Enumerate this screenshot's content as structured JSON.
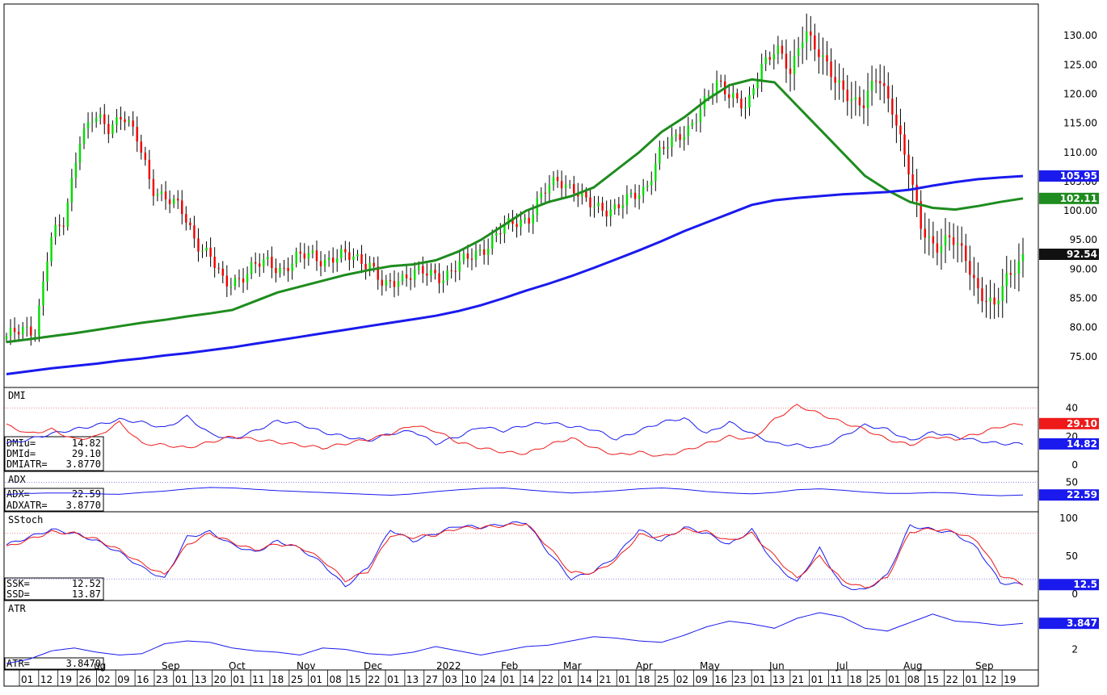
{
  "chart_data": [
    {
      "panel": "price",
      "type": "ohlc-bar",
      "ylim": [
        70,
        135
      ],
      "yticks": [
        "75.00",
        "80.00",
        "85.00",
        "90.00",
        "95.00",
        "100.00",
        "105.00",
        "110.00",
        "115.00",
        "120.00",
        "125.00",
        "130.00"
      ],
      "badges": [
        {
          "text": "105.95",
          "value": 105.95,
          "color": "#1a1aee"
        },
        {
          "text": "102.11",
          "value": 102.11,
          "color": "#1e8c1e"
        },
        {
          "text": "92.54",
          "value": 92.54,
          "color": "#111111"
        }
      ],
      "closes_by_month": {
        "Jul-21": [
          78.5,
          79.2,
          79.8
        ],
        "Aug": [
          95.0,
          98.0,
          112.5,
          116.0,
          114.0,
          117.0
        ],
        "Sep": [
          112.0,
          104.0,
          102.5,
          100.0,
          95.0,
          92.54
        ],
        "Oct": [
          87.0,
          88.5,
          90.5,
          91.0,
          90.0
        ],
        "Nov": [
          91.8,
          92.5,
          91.5,
          92.0,
          92.3,
          91.0
        ],
        "Dec": [
          86.5,
          88.5,
          89.5,
          89.0,
          88.8
        ],
        "Jan-22": [
          90.5,
          92.0,
          94.0,
          96.5,
          98.0,
          99.0
        ],
        "Feb": [
          103.0,
          105.5,
          104.0,
          101.0,
          100.5
        ],
        "Mar": [
          100.5,
          102.0,
          104.0,
          110.0,
          112.0
        ],
        "Apr": [
          114.5,
          118.0,
          122.0,
          120.0,
          117.0
        ],
        "May": [
          125.0,
          128.5,
          123.0,
          131.5,
          127.0,
          122.0
        ],
        "Jun": [
          120.0,
          118.0,
          123.0,
          118.0,
          108.0,
          97.0,
          94.0
        ],
        "Jul": [
          95.0,
          92.5,
          86.0,
          83.0,
          89.5,
          92.0
        ]
      },
      "series": [
        {
          "name": "",
          "color": "#1e8c1e",
          "values": [
            77.5,
            78.0,
            78.5,
            79.0,
            79.6,
            80.2,
            80.8,
            81.3,
            81.9,
            82.4,
            83.0,
            84.5,
            86.0,
            87.0,
            88.0,
            89.0,
            89.8,
            90.5,
            90.8,
            91.5,
            93.0,
            95.0,
            97.5,
            100.0,
            101.5,
            102.5,
            104.0,
            107.0,
            110.0,
            113.5,
            116.0,
            119.0,
            121.5,
            122.5,
            122.0,
            118.0,
            114.0,
            110.0,
            106.0,
            103.5,
            101.5,
            100.5,
            100.2,
            100.8,
            101.5,
            102.11
          ]
        },
        {
          "name": "",
          "color": "#1a1aee",
          "values": [
            72.0,
            72.5,
            73.0,
            73.4,
            73.8,
            74.3,
            74.7,
            75.2,
            75.6,
            76.1,
            76.6,
            77.2,
            77.8,
            78.4,
            79.0,
            79.6,
            80.2,
            80.8,
            81.4,
            82.0,
            82.8,
            83.8,
            85.0,
            86.3,
            87.5,
            88.8,
            90.2,
            91.7,
            93.2,
            94.8,
            96.5,
            98.0,
            99.5,
            101.0,
            101.8,
            102.2,
            102.5,
            102.8,
            103.0,
            103.2,
            103.6,
            104.3,
            104.9,
            105.4,
            105.7,
            105.95
          ]
        }
      ]
    },
    {
      "panel": "DMI",
      "type": "line",
      "title": "DMI",
      "yticks": [
        "40",
        "20",
        "0"
      ],
      "ylim": [
        0,
        50
      ],
      "refline": 40,
      "readouts": [
        {
          "label": "DMIu=",
          "value": "14.82"
        },
        {
          "label": "DMId=",
          "value": "29.10"
        },
        {
          "label": "DMIATR=",
          "value": "3.8770"
        }
      ],
      "badges": [
        {
          "text": "29.10",
          "value": 29.1,
          "color": "#ee1a1a"
        },
        {
          "text": "14.82",
          "value": 14.82,
          "color": "#1a1aee"
        }
      ],
      "series": [
        {
          "name": "DMIu",
          "color": "#1a1aee",
          "values": [
            15,
            18,
            22,
            25,
            28,
            32,
            30,
            26,
            34,
            22,
            18,
            24,
            31,
            29,
            23,
            20,
            17,
            22,
            24,
            15,
            20,
            27,
            24,
            28,
            30,
            27,
            25,
            18,
            24,
            30,
            33,
            22,
            30,
            22,
            15,
            14,
            12,
            20,
            28,
            25,
            17,
            23,
            20,
            17,
            15,
            14.82
          ]
        },
        {
          "name": "DMId",
          "color": "#ee1a1a",
          "values": [
            28,
            22,
            25,
            18,
            20,
            30,
            15,
            14,
            12,
            16,
            20,
            18,
            16,
            14,
            12,
            15,
            18,
            22,
            28,
            24,
            16,
            12,
            9,
            8,
            14,
            19,
            12,
            7,
            9,
            6,
            10,
            15,
            20,
            18,
            32,
            42,
            36,
            30,
            25,
            18,
            14,
            20,
            18,
            22,
            27,
            29.1
          ]
        }
      ]
    },
    {
      "panel": "ADX",
      "type": "line",
      "title": "ADX",
      "yticks": [
        "50"
      ],
      "ylim": [
        0,
        60
      ],
      "refline": 50,
      "readouts": [
        {
          "label": "ADX=",
          "value": "22.59"
        },
        {
          "label": "ADXATR=",
          "value": "3.8770"
        }
      ],
      "badges": [
        {
          "text": "22.59",
          "value": 22.59,
          "color": "#1a1aee"
        }
      ],
      "series": [
        {
          "name": "ADX",
          "color": "#1a1aee",
          "values": [
            24,
            26,
            27,
            27,
            25,
            24,
            28,
            31,
            36,
            39,
            38,
            35,
            32,
            30,
            28,
            26,
            24,
            22,
            25,
            30,
            34,
            37,
            38,
            34,
            30,
            27,
            29,
            32,
            36,
            38,
            35,
            30,
            27,
            25,
            28,
            34,
            36,
            33,
            29,
            26,
            26,
            28,
            27,
            23,
            21,
            22.59
          ]
        }
      ]
    },
    {
      "panel": "SStoch",
      "type": "line",
      "title": "SStoch",
      "yticks": [
        "100",
        "50",
        "0"
      ],
      "ylim": [
        0,
        100
      ],
      "reflines": [
        80,
        20
      ],
      "readouts": [
        {
          "label": "SSK=",
          "value": "12.52"
        },
        {
          "label": "SSD=",
          "value": "13.87"
        }
      ],
      "badges": [
        {
          "text": "12.5",
          "value": 12.52,
          "color": "#1a1aee"
        }
      ],
      "series": [
        {
          "name": "SSK",
          "color": "#1a1aee",
          "values": [
            65,
            75,
            85,
            80,
            70,
            55,
            35,
            20,
            75,
            82,
            65,
            55,
            70,
            60,
            40,
            10,
            35,
            85,
            70,
            80,
            90,
            88,
            92,
            95,
            55,
            20,
            30,
            50,
            85,
            70,
            88,
            80,
            65,
            85,
            40,
            15,
            60,
            10,
            5,
            25,
            90,
            85,
            80,
            60,
            15,
            12.52
          ]
        },
        {
          "name": "SSD",
          "color": "#ee1a1a",
          "values": [
            62,
            72,
            82,
            80,
            72,
            58,
            40,
            25,
            65,
            80,
            68,
            58,
            66,
            62,
            45,
            18,
            30,
            78,
            75,
            78,
            87,
            88,
            90,
            93,
            62,
            28,
            28,
            45,
            78,
            75,
            85,
            82,
            70,
            80,
            50,
            20,
            50,
            18,
            8,
            22,
            82,
            86,
            82,
            70,
            25,
            13.87
          ]
        }
      ]
    },
    {
      "panel": "ATR",
      "type": "line",
      "title": "ATR",
      "yticks": [
        "2"
      ],
      "ylim": [
        1,
        5
      ],
      "readouts": [
        {
          "label": "ATR=",
          "value": "3.8470"
        }
      ],
      "badges": [
        {
          "text": "3.847",
          "value": 3.847,
          "color": "#1a1aee"
        }
      ],
      "series": [
        {
          "name": "ATR",
          "color": "#1a1aee",
          "values": [
            1.0,
            1.3,
            1.9,
            2.1,
            1.8,
            1.6,
            1.7,
            2.4,
            2.6,
            2.5,
            2.1,
            1.9,
            1.8,
            1.6,
            2.1,
            2.0,
            1.7,
            1.6,
            1.8,
            2.2,
            1.9,
            1.6,
            1.9,
            2.2,
            2.3,
            2.6,
            2.9,
            2.8,
            2.6,
            2.5,
            3.0,
            3.6,
            4.0,
            3.8,
            3.5,
            4.2,
            4.6,
            4.3,
            3.5,
            3.3,
            3.9,
            4.5,
            4.0,
            3.9,
            3.7,
            3.847
          ]
        }
      ]
    }
  ],
  "x_axis": {
    "day_labels": [
      "01",
      "12",
      "19",
      "26",
      "02",
      "09",
      "16",
      "23",
      "01",
      "13",
      "20",
      "01",
      "11",
      "18",
      "25",
      "01",
      "08",
      "15",
      "22",
      "01",
      "13",
      "27",
      "03",
      "10",
      "24",
      "01",
      "14",
      "22",
      "01",
      "14",
      "21",
      "01",
      "18",
      "25",
      "02",
      "09",
      "16",
      "23",
      "01",
      "13",
      "21",
      "01",
      "11",
      "18",
      "25",
      "01",
      "08",
      "15",
      "22",
      "01",
      "12",
      "19"
    ],
    "month_labels": [
      {
        "text": "Sep"
      },
      {
        "text": "Oct"
      },
      {
        "text": "Nov"
      },
      {
        "text": "Dec"
      },
      {
        "text": "2022"
      },
      {
        "text": "Feb"
      },
      {
        "text": "Mar"
      },
      {
        "text": "Apr"
      },
      {
        "text": "May"
      },
      {
        "text": "Jun"
      },
      {
        "text": "Jul"
      },
      {
        "text": "Aug"
      },
      {
        "text": "Sep"
      }
    ],
    "partial_left_label": "ug"
  },
  "colors": {
    "up": "#00dd00",
    "down": "#ee0000",
    "background": "#ffffff",
    "frame": "#000000"
  }
}
